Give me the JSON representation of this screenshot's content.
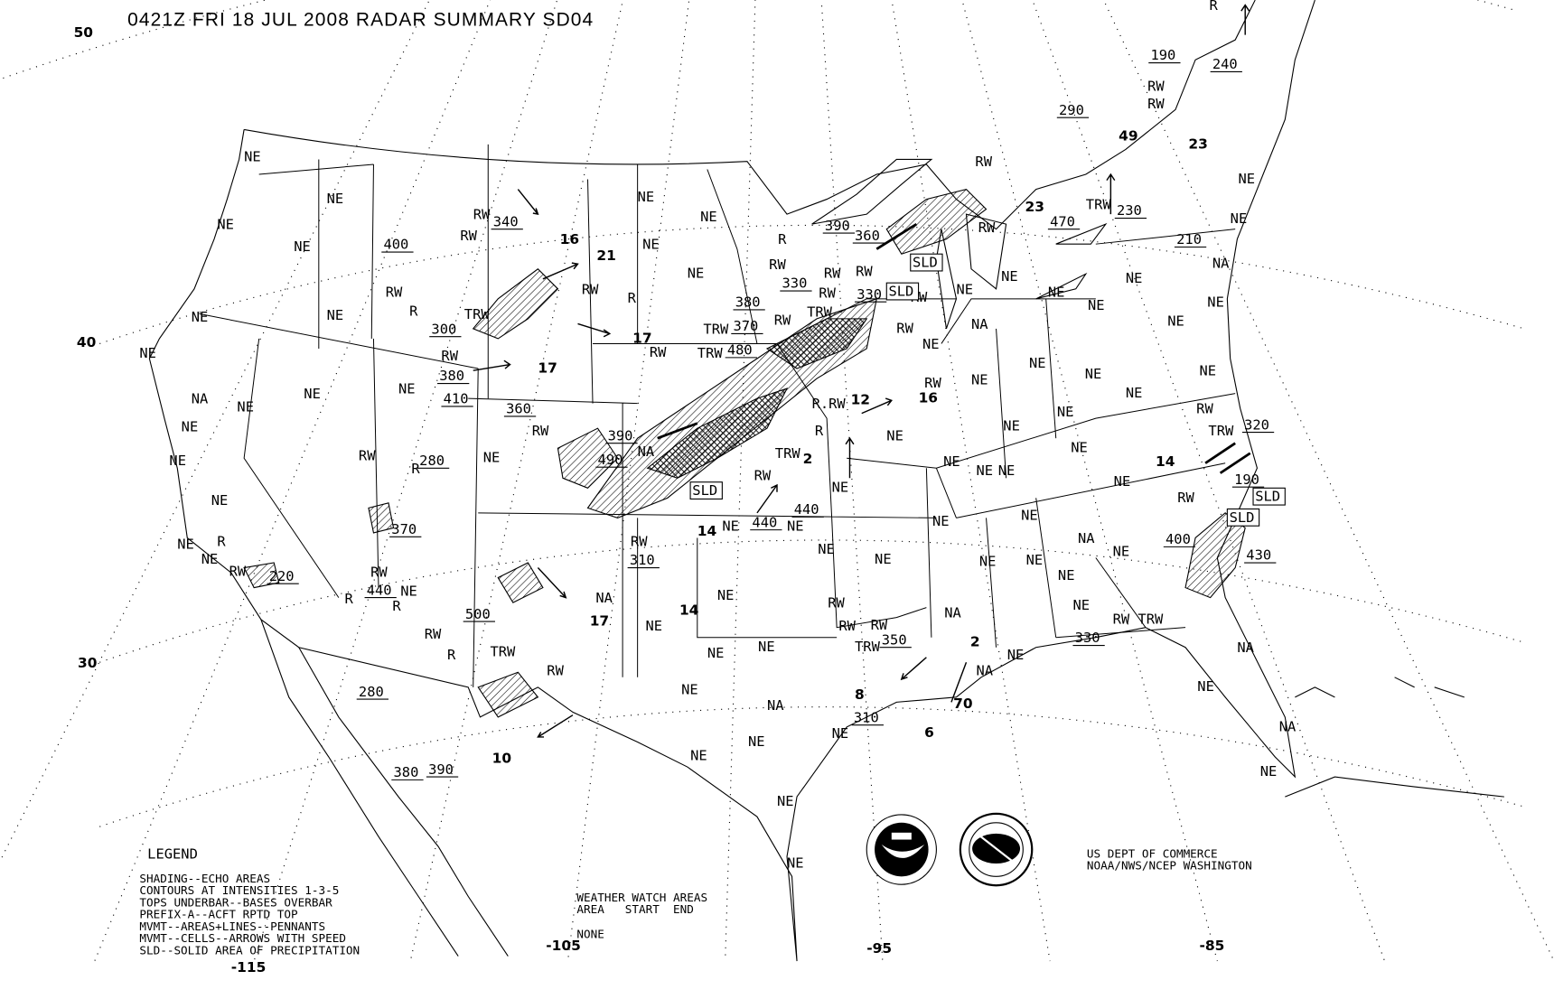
{
  "title": "0421Z FRI 18 JUL 2008 RADAR SUMMARY SD04",
  "latitude_labels": [
    "50",
    "40",
    "30"
  ],
  "longitude_labels": [
    "-115",
    "-105",
    "-95",
    "-85"
  ],
  "legend": {
    "heading": "LEGEND",
    "lines": [
      "SHADING--ECHO AREAS",
      "CONTOURS AT INTENSITIES 1-3-5",
      "TOPS UNDERBAR--BASES OVERBAR",
      "PREFIX-A--ACFT RPTD TOP",
      "MVMT--AREAS+LINES--PENNANTS",
      "MVMT--CELLS--ARROWS WITH SPEED",
      "SLD--SOLID AREA OF PRECIPITATION"
    ]
  },
  "watch": {
    "heading": "WEATHER WATCH AREAS",
    "columns": "AREA   START  END",
    "value": "NONE"
  },
  "credit": [
    "US DEPT OF COMMERCE",
    "NOAA/NWS/NCEP WASHINGTON"
  ],
  "logos": [
    "noaa-logo",
    "nws-logo"
  ],
  "map": {
    "labels": [
      "NE",
      "NE",
      "NE",
      "NE",
      "400",
      "RW",
      "340",
      "RW",
      "16",
      "NE",
      "NE",
      "NE",
      "21",
      "NE",
      "RW",
      "R",
      "TRW",
      "300",
      "NE",
      "NE",
      "NE",
      "RW",
      "380",
      "410",
      "17",
      "RW",
      "R",
      "17",
      "NA",
      "NE",
      "NE",
      "NE",
      "NE",
      "NE",
      "360",
      "RW",
      "390",
      "490",
      "NA",
      "NE",
      "RW",
      "R",
      "280",
      "NE",
      "370",
      "NE",
      "NE",
      "R",
      "RW",
      "220",
      "RW",
      "440",
      "NE",
      "R",
      "R",
      "500",
      "NA",
      "17",
      "RW",
      "310",
      "14",
      "14",
      "NE",
      "NE",
      "RW",
      "R",
      "TRW",
      "RW",
      "280",
      "380",
      "390",
      "10",
      "NE",
      "NE",
      "NE",
      "NA",
      "NE",
      "NE",
      "NE",
      "NE",
      "R",
      "390",
      "360",
      "RW",
      "RW",
      "RW",
      "330",
      "380",
      "330",
      "TRW",
      "RW",
      "TRW",
      "370",
      "RW",
      "TRW",
      "480",
      "RW",
      "RW",
      "RW",
      "NE",
      "RW",
      "16",
      "12",
      "R.RW",
      "R",
      "NE",
      "TRW",
      "2",
      "RW",
      "NE",
      "440",
      "440",
      "NE",
      "NE",
      "NE",
      "NE",
      "RW",
      "RW",
      "RW",
      "350",
      "TRW",
      "NA",
      "2",
      "NA",
      "70",
      "8",
      "310",
      "NE",
      "6",
      "NE",
      "RW",
      "23",
      "470",
      "TRW",
      "230",
      "RW",
      "NE",
      "NE",
      "NE",
      "NE",
      "NE",
      "NA",
      "NE",
      "NE",
      "NE",
      "NE",
      "NE",
      "NE",
      "NE",
      "NE",
      "NE",
      "NE",
      "NE",
      "NA",
      "NE",
      "NE",
      "NE",
      "NE",
      "NE",
      "RW TRW",
      "330",
      "NE",
      "NE",
      "NA",
      "210",
      "NE",
      "NE",
      "23",
      "49",
      "290",
      "RW",
      "RW",
      "190",
      "R",
      "240",
      "NE",
      "NE",
      "RW",
      "TRW",
      "320",
      "14",
      "NE",
      "190",
      "RW",
      "400",
      "430",
      "NA",
      "NE",
      "NA",
      "NE"
    ],
    "boxed_labels": [
      "SLD",
      "SLD",
      "SLD",
      "SLD",
      "SLD"
    ]
  }
}
